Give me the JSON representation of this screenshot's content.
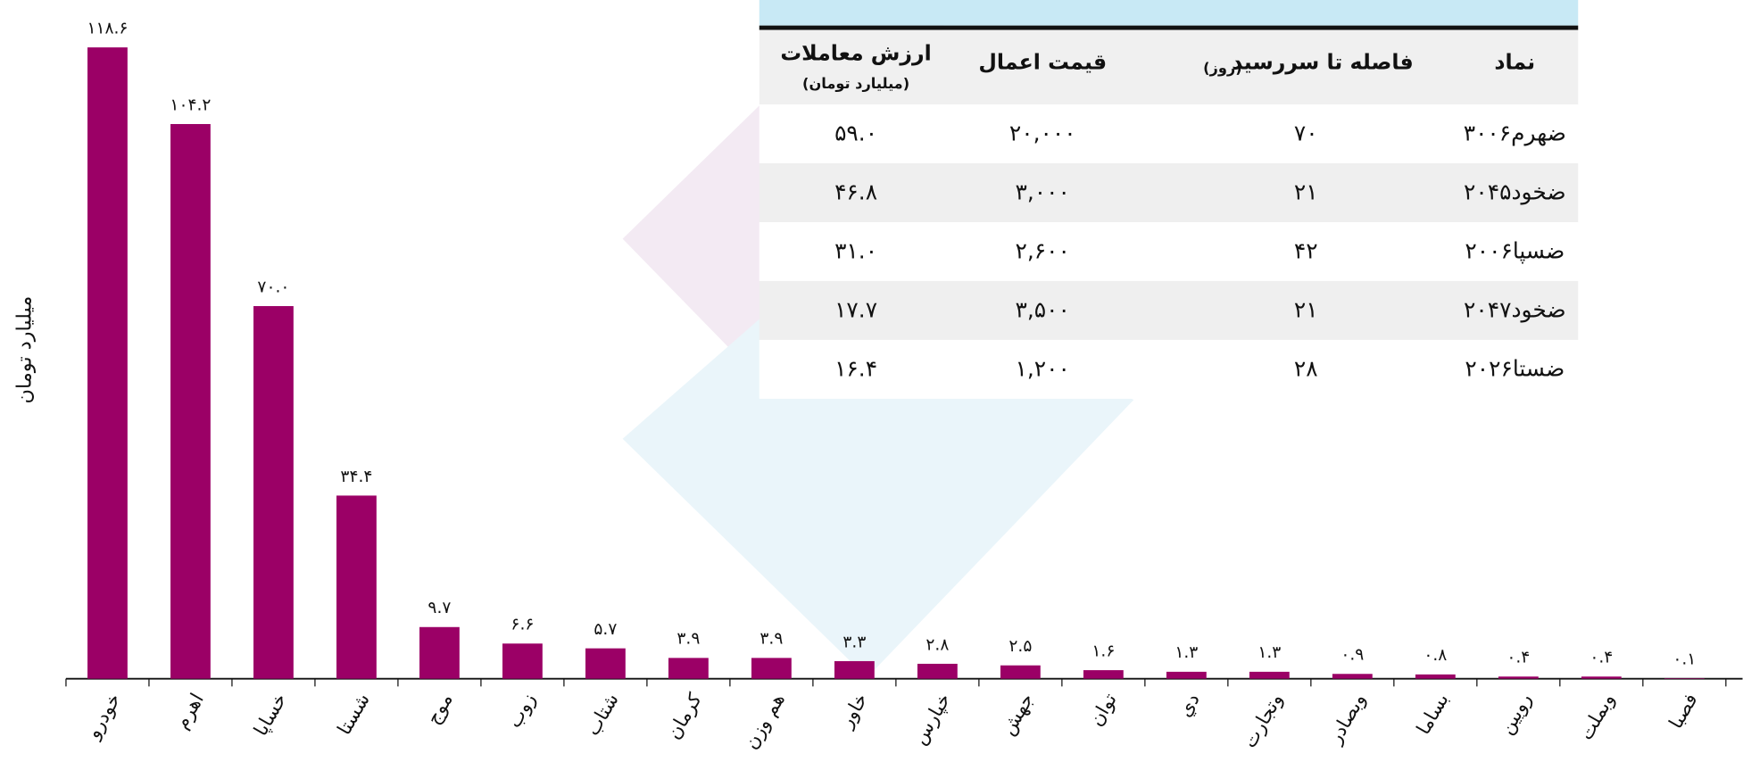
{
  "chart_data": {
    "type": "bar",
    "y_label": "میلیارد تومان",
    "categories": [
      "خودرو",
      "اهرم",
      "خساپا",
      "شستا",
      "موج",
      "زوب",
      "شتاب",
      "کرمان",
      "هم وزن",
      "خاور",
      "خپارس",
      "جهش",
      "توان",
      "دي",
      "وتجارت",
      "وبصادر",
      "بساما",
      "رويين",
      "وبملت",
      "فصبا"
    ],
    "values": [
      118.6,
      104.2,
      70.0,
      34.4,
      9.7,
      6.6,
      5.7,
      3.9,
      3.9,
      3.3,
      2.8,
      2.5,
      1.6,
      1.3,
      1.3,
      0.9,
      0.8,
      0.4,
      0.4,
      0.1
    ],
    "value_labels": [
      "۱۱۸.۶",
      "۱۰۴.۲",
      "۷۰.۰",
      "۳۴.۴",
      "۹.۷",
      "۶.۶",
      "۵.۷",
      "۳.۹",
      "۳.۹",
      "۳.۳",
      "۲.۸",
      "۲.۵",
      "۱.۶",
      "۱.۳",
      "۱.۳",
      "۰.۹",
      "۰.۸",
      "۰.۴",
      "۰.۴",
      "۰.۱"
    ],
    "color": "#9b0066",
    "ylim": [
      0,
      125
    ]
  },
  "table": {
    "header": [
      {
        "label": "نماد"
      },
      {
        "label": "فاصله تا سررسید",
        "sub": "(روز)"
      },
      {
        "label": "قیمت اعمال"
      },
      {
        "label": "ارزش معاملات",
        "sub": "(میلیارد تومان)"
      }
    ],
    "rows": [
      [
        "ضهرم۳۰۰۶",
        "۷۰",
        "۲۰,۰۰۰",
        "۵۹.۰"
      ],
      [
        "ضخود۲۰۴۵",
        "۲۱",
        "۳,۰۰۰",
        "۴۶.۸"
      ],
      [
        "ضسپا۲۰۰۶",
        "۴۲",
        "۲,۶۰۰",
        "۳۱.۰"
      ],
      [
        "ضخود۲۰۴۷",
        "۲۱",
        "۳,۵۰۰",
        "۱۷.۷"
      ],
      [
        "ضستا۲۰۲۶",
        "۲۸",
        "۱,۲۰۰",
        "۱۶.۴"
      ]
    ]
  }
}
